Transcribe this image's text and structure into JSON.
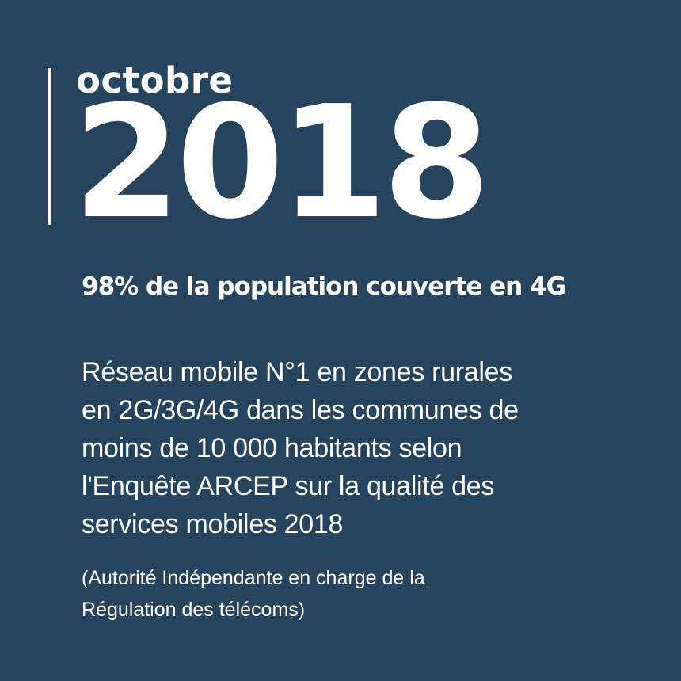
{
  "date": {
    "month": "octobre",
    "year": "2018"
  },
  "headline": "98% de la population couverte en 4G",
  "body_lines": [
    "Réseau mobile N°1 en zones rurales",
    "en 2G/3G/4G dans les communes de",
    "moins de 10 000 habitants selon",
    "l'Enquête ARCEP sur la qualité des",
    "services mobiles 2018"
  ],
  "footnote_lines": [
    "(Autorité Indépendante en charge de la",
    "Régulation des télécoms)"
  ],
  "colors": {
    "background": "#27445f",
    "text": "#ffffff"
  }
}
